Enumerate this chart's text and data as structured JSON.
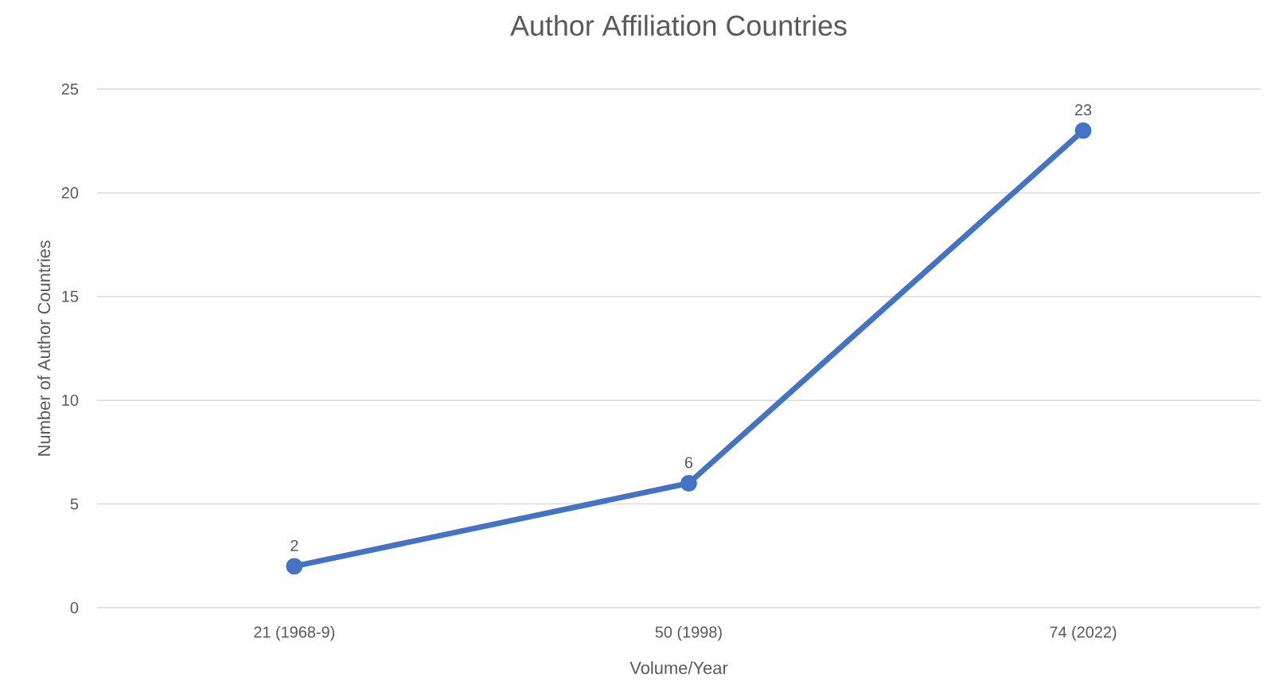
{
  "chart_data": {
    "type": "line",
    "title": "Author Affiliation Countries",
    "xlabel": "Volume/Year",
    "ylabel": "Number of Author Countries",
    "categories": [
      "21 (1968-9)",
      "50 (1998)",
      "74 (2022)"
    ],
    "series": [
      {
        "color": "#4472c4",
        "values": [
          2,
          6,
          23
        ]
      }
    ],
    "ylim": [
      0,
      25
    ],
    "yticks": [
      0,
      5,
      10,
      15,
      20,
      25
    ],
    "grid": "y",
    "marker": "circle",
    "line_style": "solid",
    "data_labels": true
  }
}
